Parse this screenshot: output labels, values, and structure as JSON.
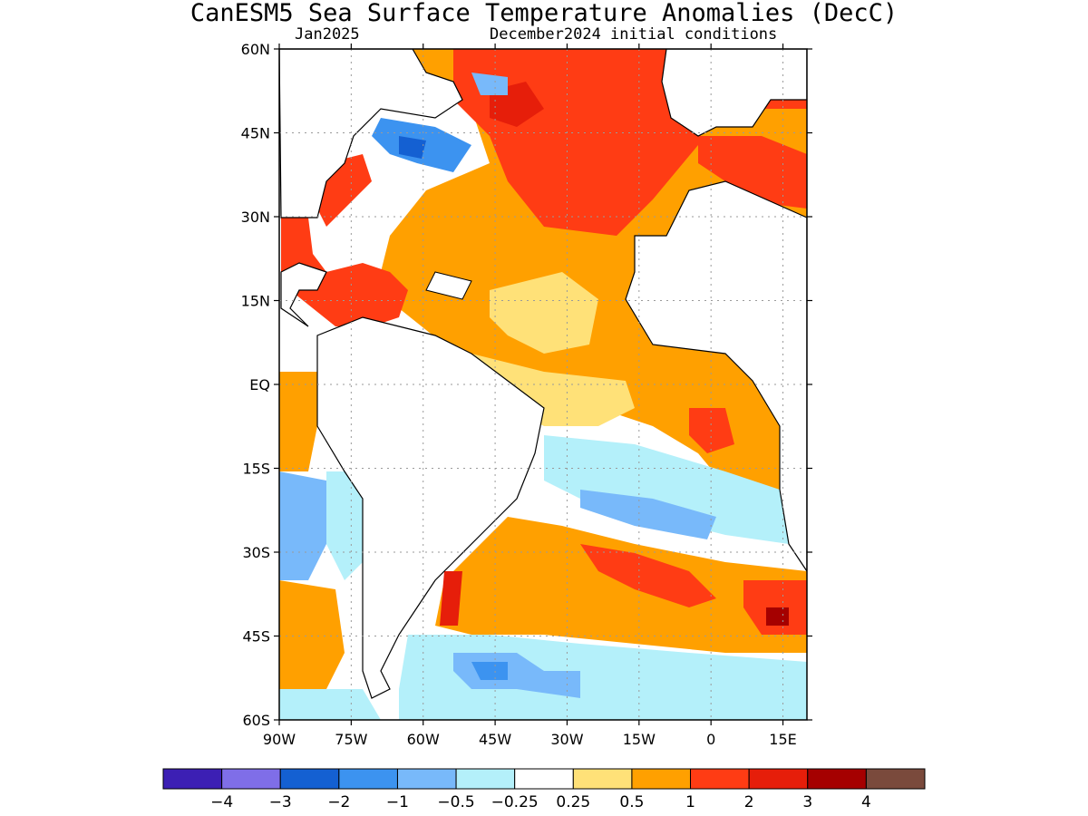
{
  "title": "CanESM5 Sea Surface Temperature Anomalies (DecC)",
  "forecast_month": "Jan2025",
  "initial_conditions": "December2024 initial conditions",
  "map": {
    "lon_range": [
      -90,
      20
    ],
    "lat_range": [
      -60,
      60
    ],
    "lat_ticks": [
      {
        "value": 60,
        "label": "60N"
      },
      {
        "value": 45,
        "label": "45N"
      },
      {
        "value": 30,
        "label": "30N"
      },
      {
        "value": 15,
        "label": "15N"
      },
      {
        "value": 0,
        "label": "EQ"
      },
      {
        "value": -15,
        "label": "15S"
      },
      {
        "value": -30,
        "label": "30S"
      },
      {
        "value": -45,
        "label": "45S"
      },
      {
        "value": -60,
        "label": "60S"
      }
    ],
    "lon_ticks": [
      {
        "value": -90,
        "label": "90W"
      },
      {
        "value": -75,
        "label": "75W"
      },
      {
        "value": -60,
        "label": "60W"
      },
      {
        "value": -45,
        "label": "45W"
      },
      {
        "value": -30,
        "label": "30W"
      },
      {
        "value": -15,
        "label": "15W"
      },
      {
        "value": 0,
        "label": "0"
      },
      {
        "value": 15,
        "label": "15E"
      }
    ],
    "grid": true
  },
  "colorbar": {
    "colors": [
      "#3c1fb4",
      "#7f6ee8",
      "#1460d2",
      "#3c93f0",
      "#78b9fa",
      "#b4f0fa",
      "#ffffff",
      "#ffe178",
      "#ffa000",
      "#ff3c14",
      "#e61e0a",
      "#a50000",
      "#7a4a3c"
    ],
    "labels": [
      "−4",
      "−3",
      "−2",
      "−1",
      "−0.5",
      "−0.25",
      "0.25",
      "0.5",
      "1",
      "2",
      "3",
      "4"
    ]
  },
  "colors": {
    "land": "#ffffff",
    "coast": "#000000",
    "grid": "#9a9a9a"
  }
}
